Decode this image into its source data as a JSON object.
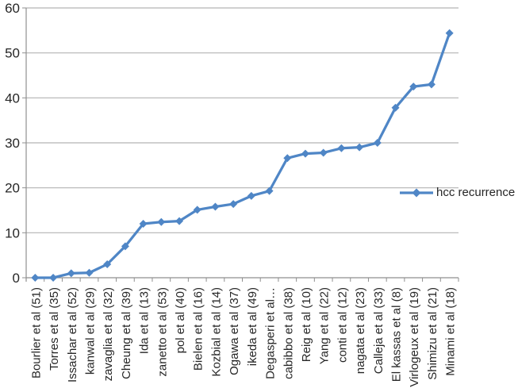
{
  "chart_data": {
    "type": "line",
    "title": "",
    "xlabel": "",
    "ylabel": "",
    "ylim": [
      0,
      60
    ],
    "yticks": [
      0,
      10,
      20,
      30,
      40,
      50,
      60
    ],
    "grid": "horizontal",
    "legend_position": "right",
    "x_tick_label_rotation": 90,
    "marker": "diamond",
    "categories": [
      "Bourlier et al (51)",
      "Torres et al (35)",
      "Issachar et al (52)",
      "kanwal et al (29)",
      "zavaglia et al (32)",
      "Cheung et al (39)",
      "Ida et al (13)",
      "zanetto et al (53)",
      "pol et al (40)",
      "Bielen et al (16)",
      "Kozbial et al (14)",
      "Ogawa et al (37)",
      "ikeda et al (49)",
      "Degasperi et al…",
      "cabibbo et al (38)",
      "Reig et al (10)",
      "Yang et al (22)",
      "conti et al (12)",
      "nagata et al (23)",
      "Calleja et al (33)",
      "El kassas et al (8)",
      "Virlogeux et al (19)",
      "Shimizu et al (21)",
      "Minami et al (18)"
    ],
    "series": [
      {
        "name": "hcc recurrence",
        "values": [
          0,
          0,
          1,
          1.1,
          3,
          7,
          12,
          12.4,
          12.6,
          15.1,
          15.8,
          16.4,
          18.2,
          19.3,
          26.6,
          27.6,
          27.8,
          28.8,
          29,
          30,
          37.8,
          42.5,
          43,
          54.4
        ]
      }
    ]
  },
  "colors": {
    "series_blue": "#4F86C6",
    "gridline": "#B3B3B3",
    "axis": "#8F8F8F",
    "text": "#262626",
    "background": "#FFFFFF"
  }
}
